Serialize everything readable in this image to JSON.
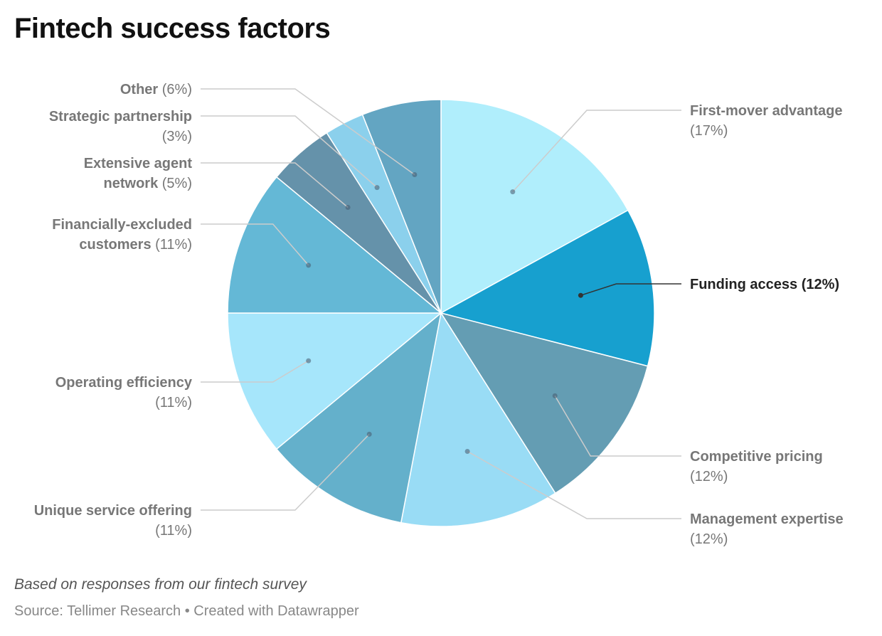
{
  "title": "Fintech success factors",
  "notes": "Based on responses from our fintech survey",
  "source": "Source: Tellimer Research • Created with Datawrapper",
  "chart_data": {
    "type": "pie",
    "title": "Fintech success factors",
    "start_angle_deg": 0,
    "direction": "clockwise",
    "unit": "%",
    "slices": [
      {
        "label": "First-mover advantage",
        "value": 17,
        "color": "#b0eefc",
        "label_lines": [
          [
            "First-mover advantage",
            ""
          ],
          [
            "",
            "(17%)"
          ]
        ]
      },
      {
        "label": "Funding access",
        "value": 12,
        "color": "#17a0cf",
        "highlight": true,
        "label_lines": [
          [
            "Funding access",
            " (12%)"
          ]
        ]
      },
      {
        "label": "Competitive pricing",
        "value": 12,
        "color": "#649db3",
        "label_lines": [
          [
            "Competitive pricing",
            ""
          ],
          [
            "",
            "(12%)"
          ]
        ]
      },
      {
        "label": "Management expertise",
        "value": 12,
        "color": "#99dcf5",
        "label_lines": [
          [
            "Management expertise",
            ""
          ],
          [
            "",
            "(12%)"
          ]
        ]
      },
      {
        "label": "Unique service offering",
        "value": 11,
        "color": "#64b0cb",
        "label_lines": [
          [
            "Unique service offering",
            ""
          ],
          [
            "",
            "(11%)"
          ]
        ]
      },
      {
        "label": "Operating efficiency",
        "value": 11,
        "color": "#a6e6fb",
        "label_lines": [
          [
            "Operating efficiency",
            ""
          ],
          [
            "",
            "(11%)"
          ]
        ]
      },
      {
        "label": "Financially-excluded customers",
        "value": 11,
        "color": "#64b8d6",
        "label_lines": [
          [
            "Financially-excluded",
            ""
          ],
          [
            "customers",
            " (11%)"
          ]
        ]
      },
      {
        "label": "Extensive agent network",
        "value": 5,
        "color": "#6592aa",
        "label_lines": [
          [
            "Extensive agent",
            ""
          ],
          [
            "network",
            " (5%)"
          ]
        ]
      },
      {
        "label": "Strategic partnership",
        "value": 3,
        "color": "#8bd0ec",
        "label_lines": [
          [
            "Strategic partnership",
            ""
          ],
          [
            "",
            "(3%)"
          ]
        ]
      },
      {
        "label": "Other",
        "value": 6,
        "color": "#63a5c2",
        "label_lines": [
          [
            "Other",
            " (6%)"
          ]
        ]
      }
    ]
  }
}
